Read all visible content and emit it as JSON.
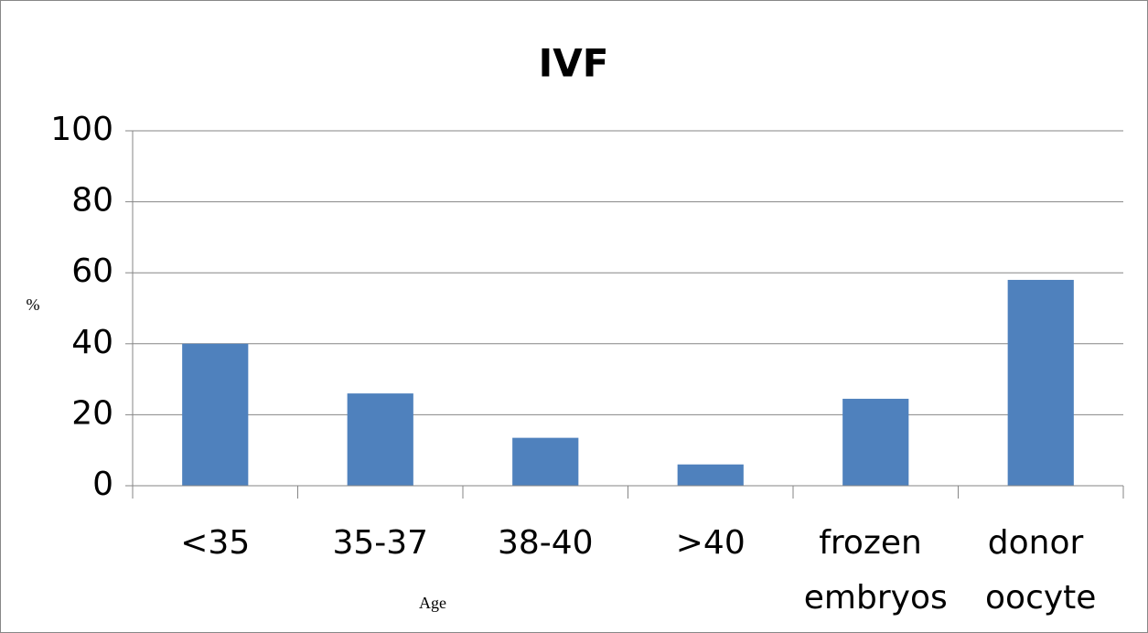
{
  "chart_data": {
    "type": "bar",
    "title": "IVF",
    "y_label": "%",
    "x_label": "Age",
    "categories": [
      "<35",
      "35-37",
      "38-40",
      ">40",
      "frozen embryos",
      "donor oocyte"
    ],
    "values": [
      40,
      26,
      13.5,
      6,
      24.5,
      58
    ],
    "color": "#4f81bd",
    "ylim": [
      0,
      100
    ],
    "yticks": [
      0,
      20,
      40,
      60,
      80,
      100
    ],
    "grid": true
  }
}
